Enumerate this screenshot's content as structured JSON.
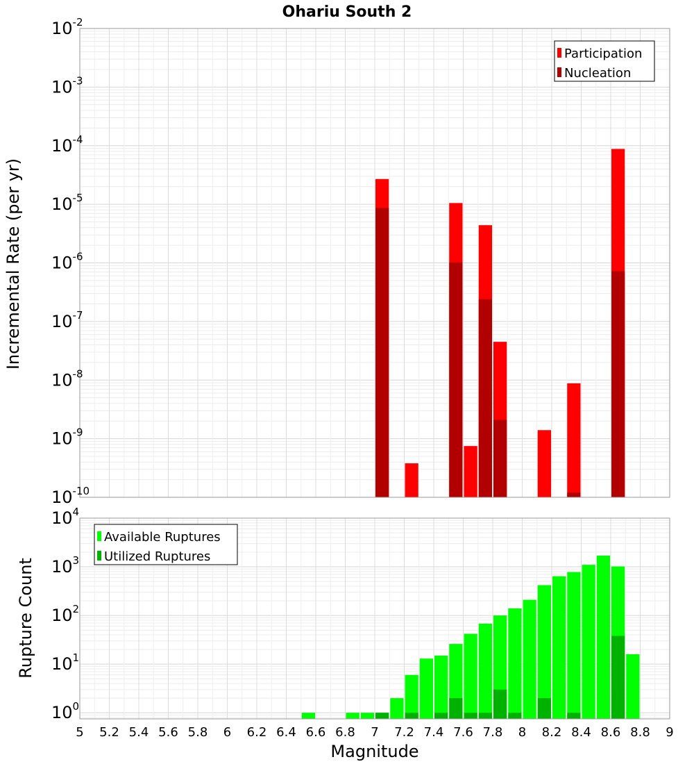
{
  "chart_data": [
    {
      "type": "bar",
      "title": "Ohariu South 2",
      "xlabel": "Magnitude",
      "ylabel": "Incremental Rate (per yr)",
      "yscale": "log",
      "ylim": [
        1e-10,
        0.01
      ],
      "xlim": [
        5,
        9
      ],
      "bin_width": 0.1,
      "legend": {
        "position": "top-right",
        "entries": [
          "Participation",
          "Nucleation"
        ]
      },
      "x": [
        7.05,
        7.25,
        7.55,
        7.65,
        7.75,
        7.85,
        8.15,
        8.35,
        8.65
      ],
      "series": [
        {
          "name": "Participation",
          "color": "#ff0000",
          "values": [
            2.7e-05,
            3.8e-10,
            1.05e-05,
            7.5e-10,
            4.4e-06,
            4.5e-08,
            1.4e-09,
            8.8e-09,
            8.8e-05
          ]
        },
        {
          "name": "Nucleation",
          "color": "#b20000",
          "values": [
            8.7e-06,
            null,
            1.02e-06,
            null,
            2.4e-07,
            2.1e-09,
            null,
            1.2e-10,
            7.2e-07
          ]
        }
      ],
      "y_ticks": [
        {
          "base": "10",
          "exp": "-10"
        },
        {
          "base": "10",
          "exp": "-9"
        },
        {
          "base": "10",
          "exp": "-8"
        },
        {
          "base": "10",
          "exp": "-7"
        },
        {
          "base": "10",
          "exp": "-6"
        },
        {
          "base": "10",
          "exp": "-5"
        },
        {
          "base": "10",
          "exp": "-4"
        },
        {
          "base": "10",
          "exp": "-3"
        },
        {
          "base": "10",
          "exp": "-2"
        }
      ]
    },
    {
      "type": "bar",
      "title": "",
      "xlabel": "Magnitude",
      "ylabel": "Rupture Count",
      "yscale": "log",
      "ylim": [
        0.75,
        10000.0
      ],
      "xlim": [
        5,
        9
      ],
      "bin_width": 0.1,
      "legend": {
        "position": "top-left",
        "entries": [
          "Available Ruptures",
          "Utilized Ruptures"
        ]
      },
      "x": [
        6.55,
        6.85,
        6.95,
        7.05,
        7.15,
        7.25,
        7.35,
        7.45,
        7.55,
        7.65,
        7.75,
        7.85,
        7.95,
        8.05,
        8.15,
        8.25,
        8.35,
        8.45,
        8.55,
        8.65,
        8.75
      ],
      "series": [
        {
          "name": "Available Ruptures",
          "color": "#00ff00",
          "values": [
            1,
            1,
            1,
            1,
            2,
            6,
            13,
            15,
            26,
            42,
            68,
            100,
            140,
            210,
            420,
            640,
            780,
            1100,
            1700,
            1020,
            16
          ]
        },
        {
          "name": "Utilized Ruptures",
          "color": "#00b200",
          "values": [
            null,
            null,
            null,
            1,
            null,
            1,
            null,
            1,
            2,
            1,
            1,
            3,
            1,
            null,
            2,
            null,
            1,
            null,
            null,
            38,
            null
          ]
        }
      ],
      "y_ticks": [
        {
          "base": "10",
          "exp": "0"
        },
        {
          "base": "10",
          "exp": "1"
        },
        {
          "base": "10",
          "exp": "2"
        },
        {
          "base": "10",
          "exp": "3"
        },
        {
          "base": "10",
          "exp": "4"
        }
      ],
      "x_ticks": [
        "5",
        "5.2",
        "5.4",
        "5.6",
        "5.8",
        "6",
        "6.2",
        "6.4",
        "6.6",
        "6.8",
        "7",
        "7.2",
        "7.4",
        "7.6",
        "7.8",
        "8",
        "8.2",
        "8.4",
        "8.6",
        "8.8",
        "9"
      ]
    }
  ]
}
